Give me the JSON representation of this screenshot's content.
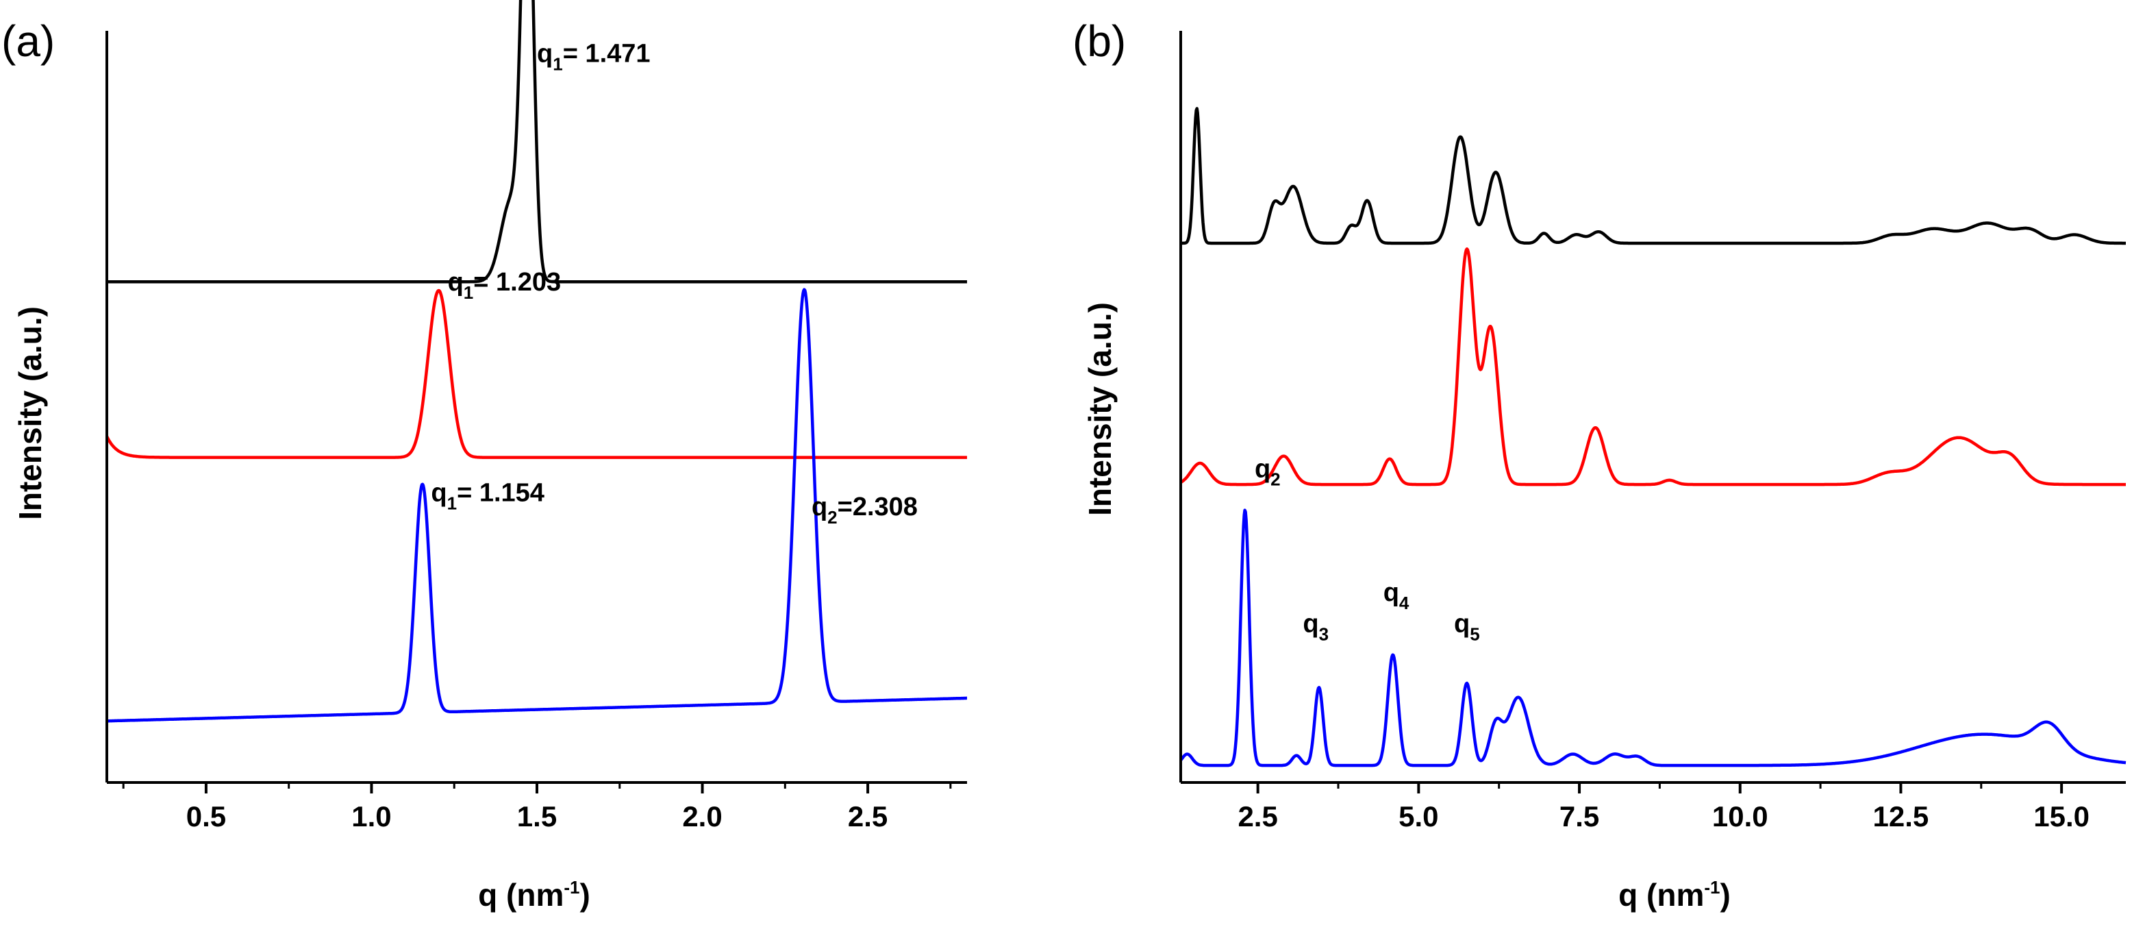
{
  "colors": {
    "black": "#000000",
    "red": "#ff0000",
    "blue": "#0000ff"
  },
  "chart_data": [
    {
      "type": "line",
      "panel_label": "(a)",
      "title": "",
      "xlabel": "q (nm",
      "xlabel_sup": "-1",
      "xlabel_end": ")",
      "ylabel": "Intensity (a.u.)",
      "xlim": [
        0.2,
        2.8
      ],
      "ylim": [
        0,
        4.2
      ],
      "xticks": [
        0.5,
        1.0,
        1.5,
        2.0,
        2.5
      ],
      "xtick_labels": [
        "0.5",
        "1.0",
        "1.5",
        "2.0",
        "2.5"
      ],
      "yticks_shown": false,
      "series": [
        {
          "name": "black",
          "color": "#000000",
          "baseline": 2.85,
          "slope": 0.0,
          "peaks": [
            [
              1.471,
              2.55,
              0.018
            ],
            [
              1.42,
              0.45,
              0.03
            ]
          ]
        },
        {
          "name": "red",
          "color": "#ff0000",
          "baseline": 1.85,
          "slope": 0.0,
          "edge_rise": 0.12,
          "peaks": [
            [
              1.203,
              0.95,
              0.032
            ]
          ]
        },
        {
          "name": "blue",
          "color": "#0000ff",
          "baseline": 0.35,
          "slope": 0.05,
          "peaks": [
            [
              1.154,
              1.3,
              0.022
            ],
            [
              2.308,
              2.35,
              0.028
            ]
          ]
        }
      ],
      "annotations": [
        {
          "main": "q",
          "sub": "1",
          "rest": "= 1.471",
          "x": 1.5,
          "y": 4.1
        },
        {
          "main": "q",
          "sub": "1",
          "rest": "= 1.203",
          "x": 1.23,
          "y": 2.8
        },
        {
          "main": "q",
          "sub": "1",
          "rest": "= 1.154",
          "x": 1.18,
          "y": 1.6
        },
        {
          "main": "q",
          "sub": "2",
          "rest": "=2.308",
          "x": 2.33,
          "y": 1.52
        }
      ]
    },
    {
      "type": "line",
      "panel_label": "(b)",
      "title": "",
      "xlabel": "q (nm",
      "xlabel_sup": "-1",
      "xlabel_end": ")",
      "ylabel": "Intensity (a.u.)",
      "xlim": [
        1.3,
        16.0
      ],
      "ylim": [
        0,
        5.2
      ],
      "xticks": [
        2.5,
        5.0,
        7.5,
        10.0,
        12.5,
        15.0
      ],
      "xtick_labels": [
        "2.5",
        "5.0",
        "7.5",
        "10.0",
        "12.5",
        "15.0"
      ],
      "yticks_shown": false,
      "series": [
        {
          "name": "black",
          "color": "#000000",
          "baseline": 3.8,
          "peaks": [
            [
              1.55,
              0.95,
              0.05
            ],
            [
              2.75,
              0.25,
              0.09
            ],
            [
              3.05,
              0.4,
              0.14
            ],
            [
              3.95,
              0.12,
              0.08
            ],
            [
              4.2,
              0.3,
              0.09
            ],
            [
              5.65,
              0.75,
              0.13
            ],
            [
              6.2,
              0.5,
              0.13
            ],
            [
              6.95,
              0.07,
              0.08
            ],
            [
              7.45,
              0.06,
              0.12
            ],
            [
              7.8,
              0.08,
              0.12
            ],
            [
              12.35,
              0.05,
              0.2
            ],
            [
              13.0,
              0.1,
              0.3
            ],
            [
              13.85,
              0.14,
              0.3
            ],
            [
              14.5,
              0.09,
              0.2
            ],
            [
              15.2,
              0.06,
              0.2
            ]
          ]
        },
        {
          "name": "red",
          "color": "#ff0000",
          "baseline": 2.1,
          "peaks": [
            [
              1.6,
              0.15,
              0.14
            ],
            [
              2.9,
              0.2,
              0.14
            ],
            [
              4.55,
              0.18,
              0.1
            ],
            [
              5.75,
              1.65,
              0.12
            ],
            [
              6.12,
              1.1,
              0.12
            ],
            [
              7.75,
              0.4,
              0.14
            ],
            [
              8.9,
              0.03,
              0.1
            ],
            [
              12.3,
              0.07,
              0.25
            ],
            [
              13.4,
              0.33,
              0.45
            ],
            [
              14.2,
              0.15,
              0.2
            ]
          ]
        },
        {
          "name": "blue",
          "color": "#0000ff",
          "baseline": 0.12,
          "peaks": [
            [
              1.4,
              0.08,
              0.08
            ],
            [
              2.3,
              1.8,
              0.065
            ],
            [
              3.1,
              0.07,
              0.07
            ],
            [
              3.45,
              0.55,
              0.065
            ],
            [
              4.6,
              0.78,
              0.08
            ],
            [
              5.75,
              0.58,
              0.08
            ],
            [
              6.2,
              0.28,
              0.1
            ],
            [
              6.55,
              0.48,
              0.16
            ],
            [
              7.4,
              0.08,
              0.15
            ],
            [
              8.05,
              0.08,
              0.15
            ],
            [
              8.4,
              0.06,
              0.12
            ],
            [
              13.8,
              0.22,
              1.0
            ],
            [
              14.8,
              0.17,
              0.22
            ]
          ]
        }
      ],
      "annotations": [
        {
          "main": "q",
          "sub": "2",
          "rest": "",
          "x": 2.45,
          "y": 2.15
        },
        {
          "main": "q",
          "sub": "3",
          "rest": "",
          "x": 3.2,
          "y": 1.06
        },
        {
          "main": "q",
          "sub": "4",
          "rest": "",
          "x": 4.45,
          "y": 1.28
        },
        {
          "main": "q",
          "sub": "5",
          "rest": "",
          "x": 5.55,
          "y": 1.06
        }
      ]
    }
  ]
}
